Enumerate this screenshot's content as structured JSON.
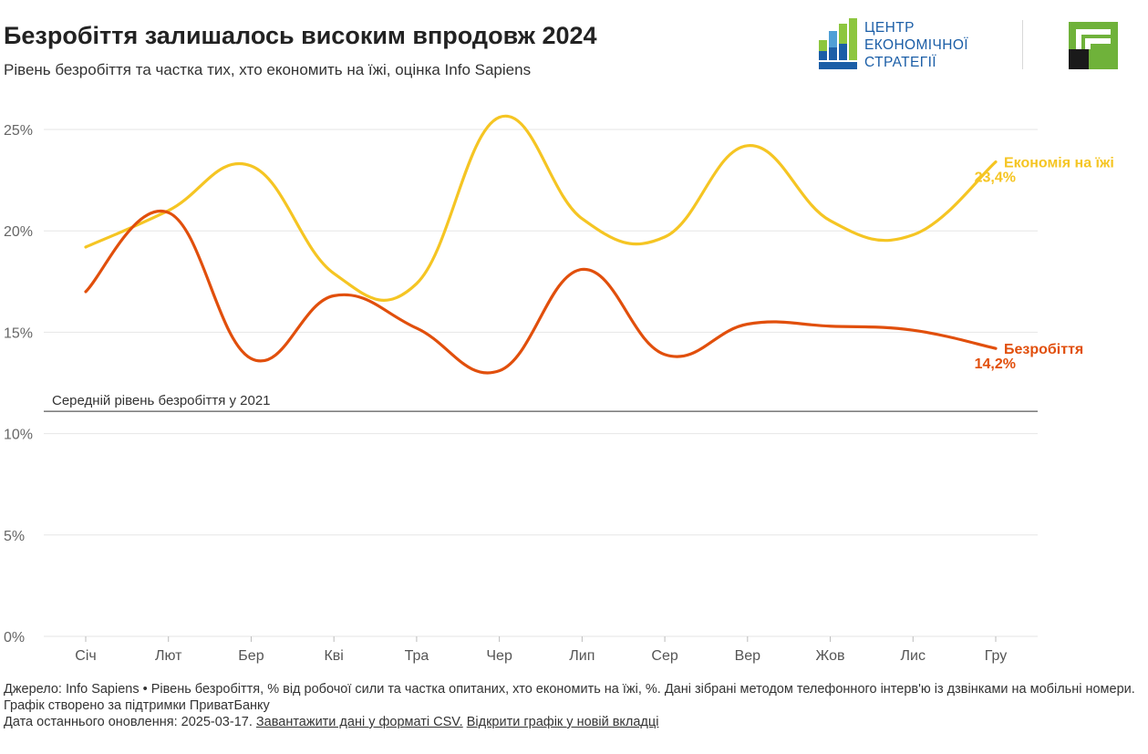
{
  "header": {
    "title": "Безробіття залишалось високим впродовж 2024",
    "subtitle": "Рівень безробіття та частка тих, хто економить на їжі, оцінка Info Sapiens"
  },
  "logos": {
    "ces_lines": [
      "ЦЕНТР",
      "ЕКОНОМІЧНОЇ",
      "СТРАТЕГІЇ"
    ],
    "ces_icon": "bar-chart-logo-icon",
    "privatbank_icon": "privatbank-logo-icon"
  },
  "colors": {
    "food_saving": "#f5c523",
    "unemployment": "#e14f0c",
    "grid": "#e6e6e6",
    "reference_line": "#333333",
    "ces_blue": "#1b5ea7",
    "ces_green": "#8dc63f",
    "privatbank_green": "#6fb23a"
  },
  "chart_data": {
    "type": "line",
    "categories": [
      "Січ",
      "Лют",
      "Бер",
      "Кві",
      "Тра",
      "Чер",
      "Лип",
      "Сер",
      "Вер",
      "Жов",
      "Лис",
      "Гру"
    ],
    "series": [
      {
        "name": "Економія на їжі",
        "values": [
          19.2,
          21.0,
          23.2,
          17.9,
          17.4,
          25.6,
          20.6,
          19.7,
          24.2,
          20.5,
          19.8,
          23.4
        ],
        "end_label": "23,4%",
        "color": "#f5c523"
      },
      {
        "name": "Безробіття",
        "values": [
          17.0,
          20.9,
          13.7,
          16.8,
          15.2,
          13.1,
          18.1,
          13.9,
          15.4,
          15.3,
          15.1,
          14.2
        ],
        "end_label": "14,2%",
        "color": "#e14f0c"
      }
    ],
    "reference_line": {
      "value": 11.1,
      "label": "Середній рівень безробіття у 2021"
    },
    "y_ticks": [
      0,
      5,
      10,
      15,
      20,
      25
    ],
    "y_tick_labels": [
      "0%",
      "5%",
      "10%",
      "15%",
      "20%",
      "25%"
    ],
    "ylim": [
      0,
      25
    ],
    "grid": true,
    "legend": "inline-right"
  },
  "footer": {
    "source": "Джерело: Info Sapiens • Рівень безробіття, % від робочої сили та частка опитаних, хто економить на їжі, %. Дані зібрані методом телефонного інтерв'ю із дзвінками на мобільні номери. Графік створено за підтримки ПриватБанку",
    "updated": "Дата останнього оновлення: 2025-03-17.",
    "csv_link": "Завантажити дані у форматі CSV.",
    "open_link": "Відкрити графік у новій вкладці"
  }
}
